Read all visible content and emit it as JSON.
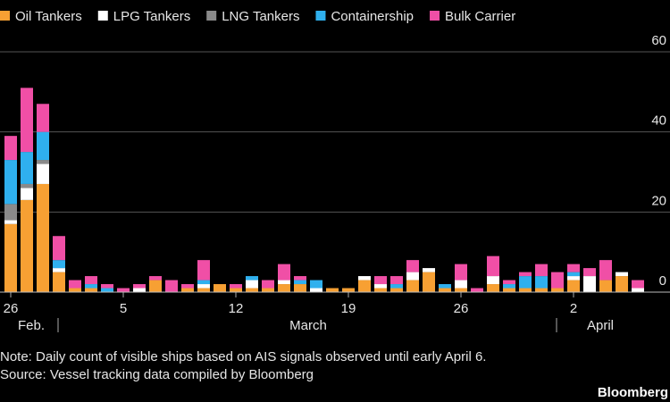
{
  "chart_data": {
    "type": "bar",
    "stacked": true,
    "categories": [
      "26",
      null,
      null,
      null,
      null,
      null,
      null,
      "5",
      null,
      null,
      null,
      null,
      null,
      null,
      "12",
      null,
      null,
      null,
      null,
      null,
      null,
      "19",
      null,
      null,
      null,
      null,
      null,
      null,
      "26",
      null,
      null,
      null,
      null,
      null,
      null,
      "2",
      null,
      null,
      null,
      null
    ],
    "months": [
      "Feb.",
      "March",
      "April"
    ],
    "series": [
      {
        "name": "Oil Tankers",
        "color": "#f7a033",
        "values": [
          17,
          23,
          27,
          5,
          1,
          1,
          0,
          0,
          0,
          3,
          0,
          1,
          1,
          2,
          1,
          1,
          1,
          2,
          2,
          0,
          1,
          1,
          3,
          1,
          1,
          3,
          5,
          1,
          1,
          0,
          2,
          1,
          1,
          1,
          1,
          3,
          0,
          3,
          4,
          0
        ]
      },
      {
        "name": "LPG Tankers",
        "color": "#ffffff",
        "values": [
          1,
          3,
          5,
          1,
          0,
          0,
          0,
          0,
          1,
          0,
          0,
          0,
          1,
          0,
          0,
          2,
          0,
          1,
          0,
          1,
          0,
          0,
          1,
          1,
          0,
          2,
          1,
          0,
          2,
          0,
          2,
          0,
          0,
          0,
          0,
          1,
          4,
          0,
          1,
          1
        ]
      },
      {
        "name": "LNG Tankers",
        "color": "#8a8a8a",
        "values": [
          4,
          1,
          1,
          0,
          0,
          0,
          0,
          0,
          0,
          0,
          0,
          0,
          0,
          0,
          0,
          0,
          0,
          0,
          0,
          0,
          0,
          0,
          0,
          0,
          0,
          0,
          0,
          0,
          0,
          0,
          0,
          0,
          0,
          0,
          0,
          0,
          0,
          0,
          0,
          0
        ]
      },
      {
        "name": "Containership",
        "color": "#2fb0ee",
        "values": [
          11,
          8,
          7,
          2,
          0,
          1,
          1,
          0,
          0,
          0,
          0,
          0,
          1,
          0,
          0,
          1,
          0,
          0,
          1,
          2,
          0,
          0,
          0,
          0,
          1,
          0,
          0,
          1,
          0,
          0,
          0,
          1,
          3,
          3,
          0,
          1,
          0,
          0,
          0,
          0
        ]
      },
      {
        "name": "Bulk Carrier",
        "color": "#f04fa6",
        "values": [
          6,
          16,
          7,
          6,
          2,
          2,
          1,
          1,
          1,
          1,
          3,
          1,
          5,
          0,
          1,
          0,
          2,
          4,
          1,
          0,
          0,
          0,
          0,
          2,
          2,
          3,
          0,
          0,
          4,
          1,
          5,
          1,
          1,
          3,
          4,
          2,
          2,
          5,
          0,
          2
        ]
      }
    ],
    "ylim": [
      0,
      60
    ],
    "yticks": [
      0,
      20,
      40,
      60
    ],
    "grid": true,
    "note": "Note: Daily count of visible ships based on AIS signals observed until early April 6.",
    "source": "Source: Vessel tracking data compiled by Bloomberg",
    "brand": "Bloomberg"
  }
}
